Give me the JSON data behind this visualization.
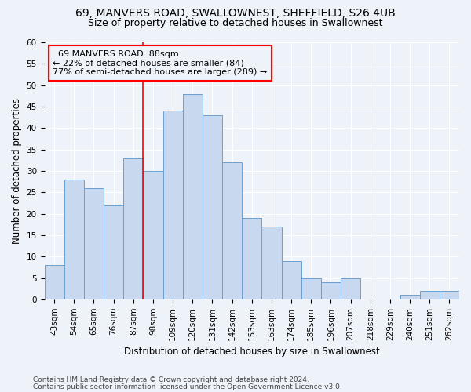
{
  "title_line1": "69, MANVERS ROAD, SWALLOWNEST, SHEFFIELD, S26 4UB",
  "title_line2": "Size of property relative to detached houses in Swallownest",
  "xlabel": "Distribution of detached houses by size in Swallownest",
  "ylabel": "Number of detached properties",
  "categories": [
    "43sqm",
    "54sqm",
    "65sqm",
    "76sqm",
    "87sqm",
    "98sqm",
    "109sqm",
    "120sqm",
    "131sqm",
    "142sqm",
    "153sqm",
    "163sqm",
    "174sqm",
    "185sqm",
    "196sqm",
    "207sqm",
    "218sqm",
    "229sqm",
    "240sqm",
    "251sqm",
    "262sqm"
  ],
  "values": [
    8,
    28,
    26,
    22,
    33,
    30,
    44,
    48,
    43,
    32,
    19,
    17,
    9,
    5,
    4,
    5,
    0,
    0,
    1,
    2,
    2
  ],
  "bar_color": "#c8d9ef",
  "bar_edge_color": "#6a9fd0",
  "ylim": [
    0,
    60
  ],
  "yticks": [
    0,
    5,
    10,
    15,
    20,
    25,
    30,
    35,
    40,
    45,
    50,
    55,
    60
  ],
  "property_label": "69 MANVERS ROAD: 88sqm",
  "pct_smaller": "22% of detached houses are smaller (84)",
  "pct_larger": "77% of semi-detached houses are larger (289)",
  "red_line_x": 4.5,
  "footer_line1": "Contains HM Land Registry data © Crown copyright and database right 2024.",
  "footer_line2": "Contains public sector information licensed under the Open Government Licence v3.0.",
  "background_color": "#eef2f9",
  "grid_color": "#ffffff",
  "title_fontsize": 10,
  "subtitle_fontsize": 9,
  "axis_label_fontsize": 8.5,
  "tick_fontsize": 7.5,
  "footer_fontsize": 6.5,
  "annotation_fontsize": 8
}
